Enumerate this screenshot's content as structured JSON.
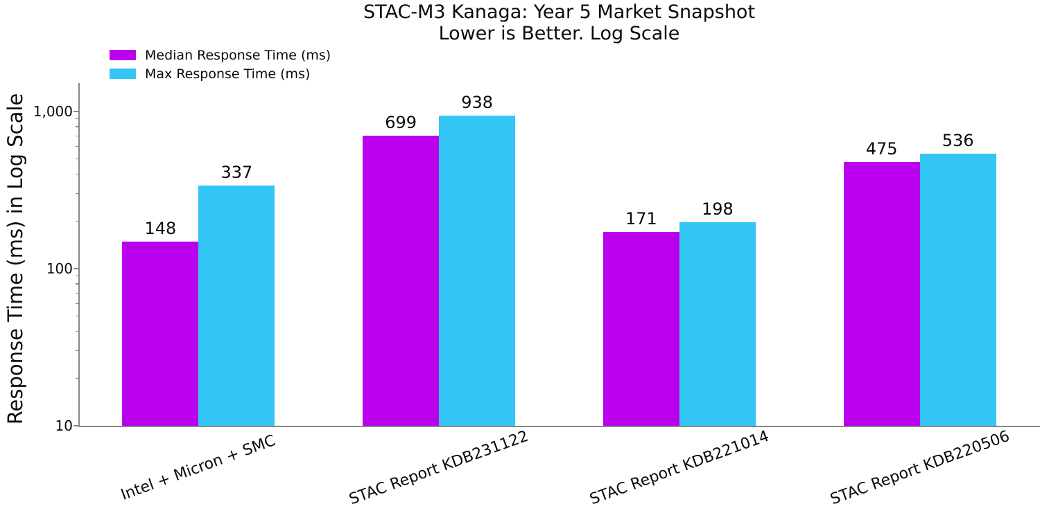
{
  "title": {
    "line1": "STAC-M3 Kanaga: Year 5 Market Snapshot",
    "line2": "Lower is Better. Log Scale"
  },
  "legend": [
    {
      "label": "Median Response Time (ms)",
      "color": "#BB00EE"
    },
    {
      "label": "Max Response Time (ms)",
      "color": "#33C6F4"
    }
  ],
  "y_axis": {
    "label": "Response Time (ms) in Log Scale",
    "tick_labels": [
      "10",
      "100",
      "1,000"
    ],
    "scale": "log"
  },
  "chart_data": {
    "type": "bar",
    "title": "STAC-M3 Kanaga: Year 5 Market Snapshot\nLower is Better. Log Scale",
    "categories": [
      "Intel + Micron + SMC",
      "STAC Report KDB231122",
      "STAC Report KDB221014",
      "STAC Report KDB220506"
    ],
    "series": [
      {
        "name": "Median Response Time (ms)",
        "color": "#BB00EE",
        "values": [
          148,
          699,
          171,
          475
        ]
      },
      {
        "name": "Max Response Time (ms)",
        "color": "#33C6F4",
        "values": [
          337,
          938,
          198,
          536
        ]
      }
    ],
    "xlabel": "",
    "ylabel": "Response Time (ms) in Log Scale",
    "yscale": "log",
    "ylim": [
      10,
      1500
    ],
    "yticks": [
      10,
      100,
      1000
    ],
    "grid": false,
    "legend_position": "top-left",
    "bar_value_labels": true,
    "colors": {
      "axis": "#888888",
      "text": "#0a0a0a",
      "background": "#ffffff"
    }
  }
}
